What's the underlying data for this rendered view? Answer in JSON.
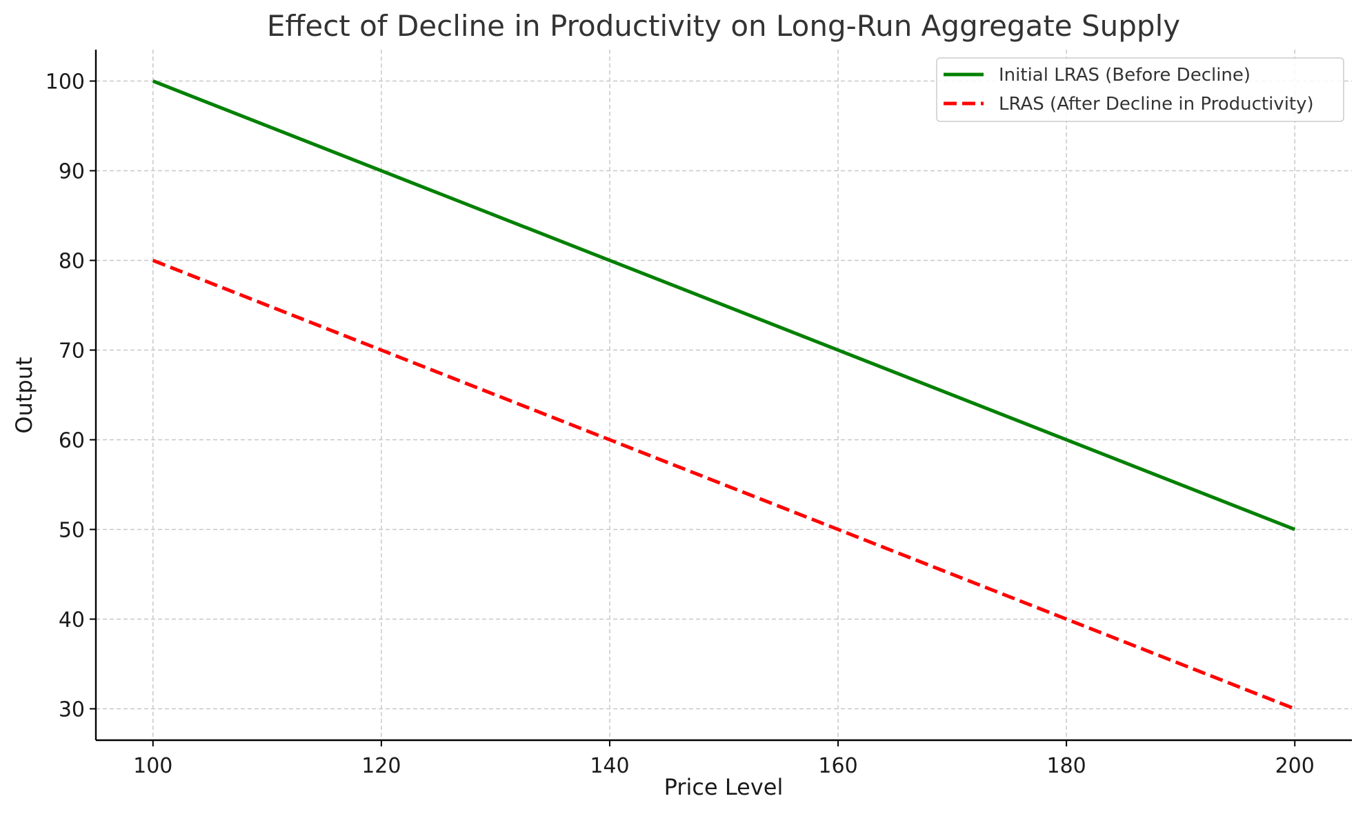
{
  "chart_data": {
    "type": "line",
    "title": "Effect of Decline in Productivity on Long-Run Aggregate Supply",
    "xlabel": "Price Level",
    "ylabel": "Output",
    "xlim": [
      95,
      205
    ],
    "ylim": [
      26.5,
      103.5
    ],
    "xticks": [
      100,
      120,
      140,
      160,
      180,
      200
    ],
    "yticks": [
      30,
      40,
      50,
      60,
      70,
      80,
      90,
      100
    ],
    "grid": true,
    "legend_position": "top-right",
    "series": [
      {
        "name": "Initial LRAS (Before Decline)",
        "color": "#008000",
        "style": "solid",
        "x": [
          100,
          200
        ],
        "y": [
          100,
          50
        ]
      },
      {
        "name": "LRAS (After Decline in Productivity)",
        "color": "#ff0000",
        "style": "dashed",
        "x": [
          100,
          200
        ],
        "y": [
          80,
          30
        ]
      }
    ]
  }
}
